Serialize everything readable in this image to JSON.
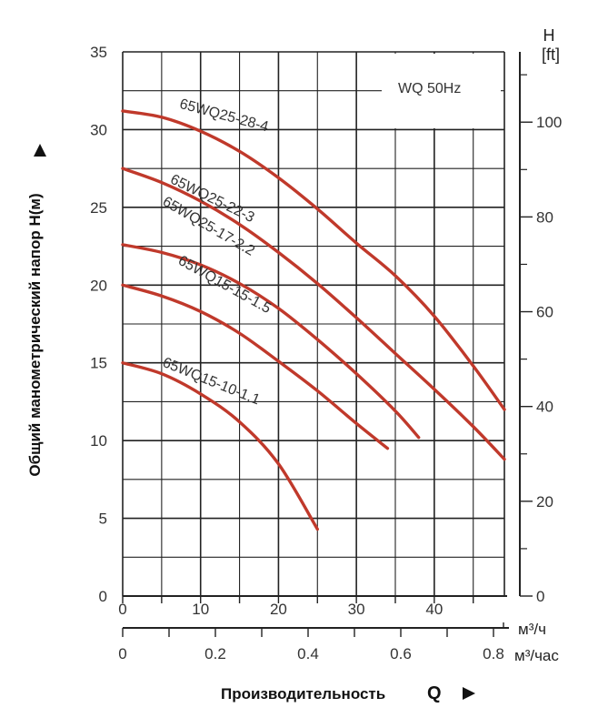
{
  "chart_data": {
    "type": "line",
    "legend": "WQ 50Hz",
    "ylabel": "Общий манометрический напор H(м)",
    "xlabel": "Производительность",
    "xlabel_symbol": "Q",
    "x_unit": "м³/ч",
    "x2_unit": "м³/час",
    "y2_title": "H",
    "y2_unit": "[ft]",
    "xlim": [
      0,
      49
    ],
    "ylim": [
      0,
      35
    ],
    "x_ticks": [
      0,
      10,
      20,
      30,
      40
    ],
    "x2_ticks": [
      "0",
      "0.2",
      "0.4",
      "0.6",
      "0.8"
    ],
    "y_ticks": [
      0,
      5,
      10,
      15,
      20,
      25,
      30,
      35
    ],
    "y2_ticks": [
      0,
      20,
      40,
      60,
      80,
      100
    ],
    "series": [
      {
        "name": "65WQ25-28-4",
        "x": [
          0,
          5,
          10,
          15,
          20,
          25,
          30,
          35,
          40,
          45,
          49
        ],
        "y": [
          31.2,
          30.8,
          29.9,
          28.6,
          26.9,
          24.9,
          22.7,
          20.6,
          18.0,
          14.8,
          12.0
        ]
      },
      {
        "name": "65WQ25-22-3",
        "x": [
          0,
          5,
          10,
          15,
          20,
          25,
          30,
          35,
          40,
          45,
          49
        ],
        "y": [
          27.5,
          26.6,
          25.4,
          23.9,
          22.1,
          20.1,
          17.9,
          15.6,
          13.3,
          10.9,
          8.8
        ]
      },
      {
        "name": "65WQ25-17-2.2",
        "x": [
          0,
          5,
          10,
          15,
          20,
          25,
          30,
          35,
          38
        ],
        "y": [
          22.6,
          22.1,
          21.3,
          20.1,
          18.5,
          16.5,
          14.3,
          11.9,
          10.2
        ]
      },
      {
        "name": "65WQ15-15-1.5",
        "x": [
          0,
          5,
          10,
          15,
          20,
          25,
          30,
          34
        ],
        "y": [
          20.0,
          19.3,
          18.3,
          16.9,
          15.1,
          13.2,
          11.1,
          9.5
        ]
      },
      {
        "name": "65WQ15-10-1.1",
        "x": [
          0,
          5,
          10,
          15,
          20,
          25
        ],
        "y": [
          15.0,
          14.3,
          13.0,
          11.2,
          8.5,
          4.3
        ]
      }
    ],
    "colors": {
      "curve": "#c0392b",
      "grid": "#222222",
      "axis": "#222222"
    }
  }
}
